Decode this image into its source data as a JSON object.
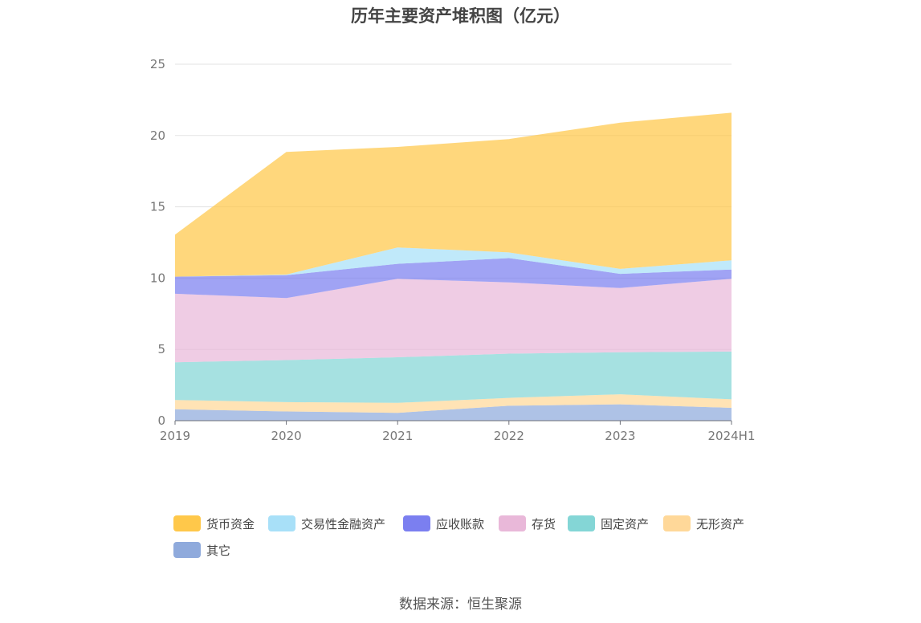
{
  "title": "历年主要资产堆积图（亿元）",
  "source": "数据来源：恒生聚源",
  "chart_data": {
    "type": "area",
    "stacked": true,
    "x": [
      "2019",
      "2020",
      "2021",
      "2022",
      "2023",
      "2024H1"
    ],
    "ylim": [
      0,
      25
    ],
    "yticks": [
      0,
      5,
      10,
      15,
      20,
      25
    ],
    "grid": true,
    "legend_position": "bottom",
    "series": [
      {
        "name": "其它",
        "color": "#8faadc",
        "values": [
          0.8,
          0.65,
          0.55,
          1.05,
          1.15,
          0.9
        ]
      },
      {
        "name": "无形资产",
        "color": "#ffd899",
        "values": [
          0.65,
          0.65,
          0.7,
          0.55,
          0.7,
          0.6
        ]
      },
      {
        "name": "固定资产",
        "color": "#84d6d6",
        "values": [
          2.65,
          2.95,
          3.2,
          3.1,
          2.95,
          3.35
        ]
      },
      {
        "name": "存货",
        "color": "#e9b8d9",
        "values": [
          4.8,
          4.35,
          5.5,
          5.0,
          4.5,
          5.1
        ]
      },
      {
        "name": "应收账款",
        "color": "#7b7ff0",
        "values": [
          1.2,
          1.6,
          1.05,
          1.7,
          1.0,
          0.65
        ]
      },
      {
        "name": "交易性金融资产",
        "color": "#a8e0f8",
        "values": [
          0.0,
          0.05,
          1.15,
          0.4,
          0.35,
          0.65
        ]
      },
      {
        "name": "货币资金",
        "color": "#ffc84a",
        "values": [
          2.95,
          8.6,
          7.05,
          7.95,
          10.25,
          10.35
        ]
      }
    ],
    "legend_order": [
      "货币资金",
      "交易性金融资产",
      "应收账款",
      "存货",
      "固定资产",
      "无形资产",
      "其它"
    ]
  }
}
